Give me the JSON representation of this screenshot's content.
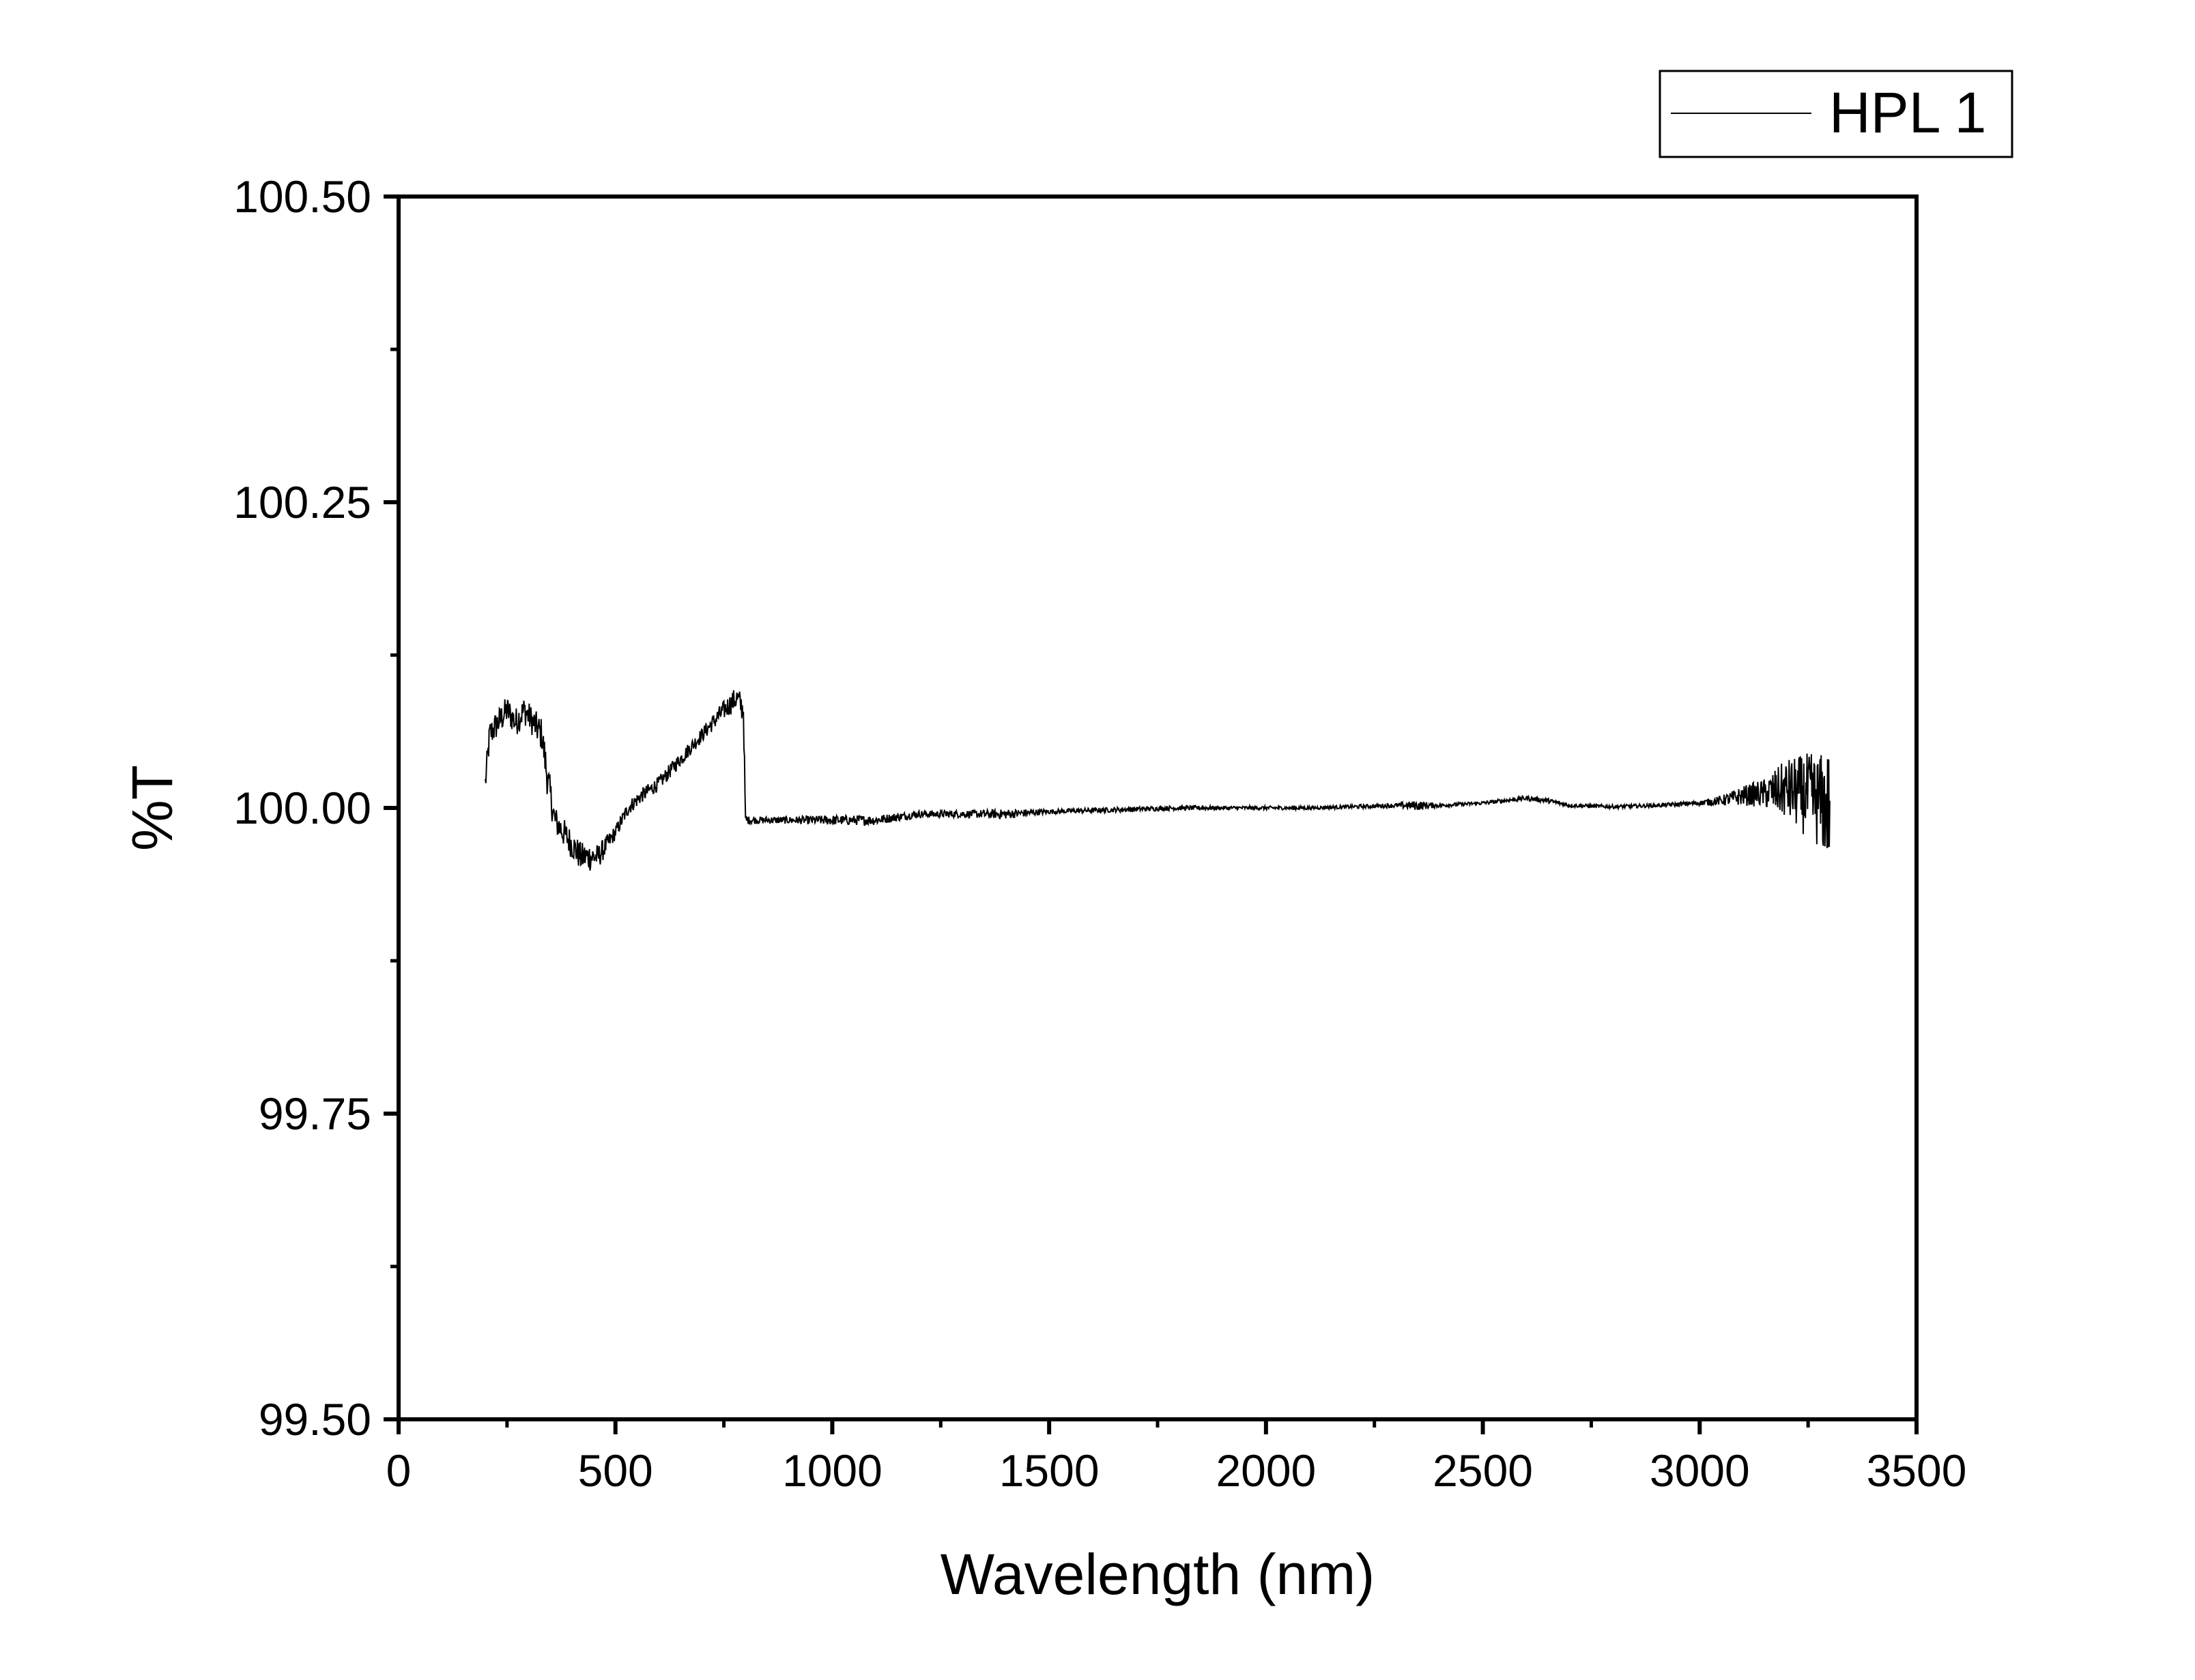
{
  "chart_data": {
    "type": "line",
    "xlabel": "Wavelength (nm)",
    "ylabel": "%T",
    "xlim": [
      0,
      3500
    ],
    "ylim": [
      99.5,
      100.5
    ],
    "x_ticks": [
      "0",
      "500",
      "1000",
      "1500",
      "2000",
      "2500",
      "3000",
      "3500"
    ],
    "x_tick_values": [
      0,
      500,
      1000,
      1500,
      2000,
      2500,
      3000,
      3500
    ],
    "x_minor_step": 250,
    "y_ticks": [
      "99.50",
      "99.75",
      "100.00",
      "100.25",
      "100.50"
    ],
    "y_tick_values": [
      99.5,
      99.75,
      100.0,
      100.25,
      100.5
    ],
    "y_minor_step": 0.125,
    "grid": false,
    "legend_position": "top-right-outside",
    "series": [
      {
        "name": "HPL 1",
        "color": "#000000",
        "x": [
          200,
          210,
          230,
          250,
          270,
          290,
          310,
          330,
          345,
          360,
          380,
          400,
          420,
          440,
          460,
          480,
          500,
          530,
          560,
          600,
          650,
          700,
          750,
          780,
          795,
          800,
          810,
          850,
          900,
          1000,
          1100,
          1200,
          1300,
          1400,
          1500,
          1600,
          1700,
          1800,
          1900,
          2000,
          2100,
          2200,
          2300,
          2350,
          2400,
          2500,
          2600,
          2650,
          2700,
          2800,
          2900,
          3000,
          3050,
          3100,
          3150,
          3200,
          3250,
          3280,
          3300
        ],
        "y": [
          100.02,
          100.06,
          100.07,
          100.08,
          100.07,
          100.08,
          100.07,
          100.06,
          100.02,
          99.99,
          99.98,
          99.97,
          99.96,
          99.96,
          99.96,
          99.97,
          99.98,
          100.0,
          100.01,
          100.02,
          100.04,
          100.06,
          100.08,
          100.09,
          100.08,
          99.99,
          99.99,
          99.99,
          99.99,
          99.99,
          99.99,
          99.995,
          99.995,
          99.995,
          99.997,
          99.998,
          99.999,
          100.0,
          100.0,
          100.0,
          100.0,
          100.001,
          100.002,
          100.002,
          100.002,
          100.004,
          100.008,
          100.006,
          100.002,
          100.001,
          100.002,
          100.004,
          100.006,
          100.01,
          100.012,
          100.015,
          100.01,
          100.005,
          100.0
        ],
        "noise": [
          0.012,
          0.012,
          0.012,
          0.012,
          0.012,
          0.012,
          0.012,
          0.014,
          0.016,
          0.012,
          0.012,
          0.012,
          0.012,
          0.012,
          0.01,
          0.008,
          0.006,
          0.006,
          0.006,
          0.006,
          0.006,
          0.006,
          0.008,
          0.01,
          0.012,
          0.004,
          0.003,
          0.003,
          0.003,
          0.004,
          0.004,
          0.003,
          0.003,
          0.004,
          0.002,
          0.002,
          0.002,
          0.002,
          0.0015,
          0.0015,
          0.0015,
          0.0015,
          0.002,
          0.004,
          0.0015,
          0.0015,
          0.002,
          0.002,
          0.0015,
          0.0015,
          0.0015,
          0.002,
          0.004,
          0.008,
          0.012,
          0.025,
          0.035,
          0.04,
          0.05
        ]
      }
    ]
  }
}
